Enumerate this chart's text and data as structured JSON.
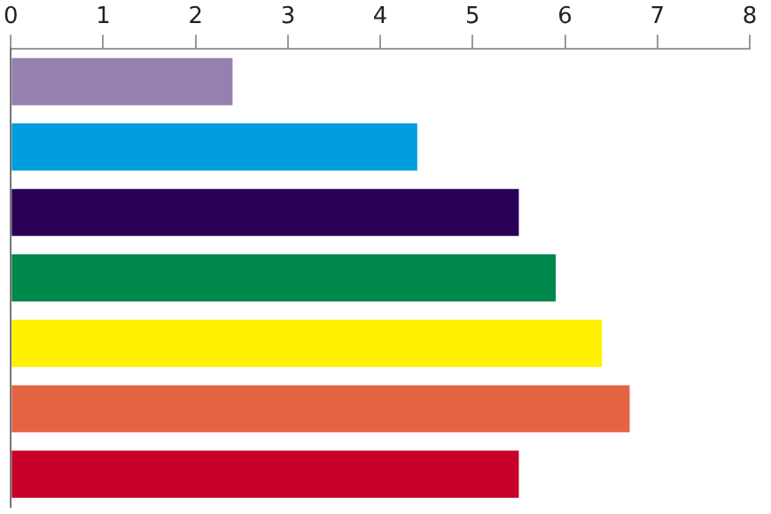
{
  "chart_data": {
    "type": "bar",
    "orientation": "horizontal",
    "categories": [
      null,
      null,
      null,
      null,
      null,
      null,
      null
    ],
    "values": [
      2.4,
      4.4,
      5.5,
      5.9,
      6.4,
      6.7,
      5.5
    ],
    "colors": [
      "#9580b0",
      "#009ede",
      "#2a0057",
      "#00874b",
      "#fff200",
      "#e46343",
      "#c8002a"
    ],
    "xlim": [
      0,
      8
    ],
    "xticks": [
      0,
      1,
      2,
      3,
      4,
      5,
      6,
      7,
      8
    ],
    "grid": false
  }
}
